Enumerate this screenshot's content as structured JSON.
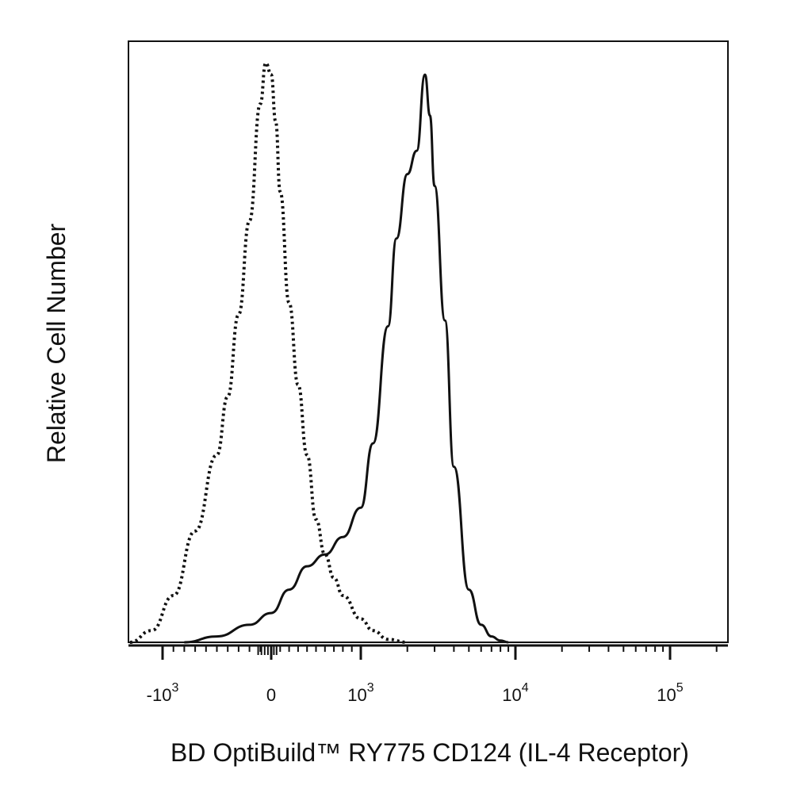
{
  "chart_data": {
    "type": "line",
    "title": "",
    "xlabel": "BD OptiBuild™ RY775 CD124 (IL-4 Receptor)",
    "ylabel": "Relative Cell Number",
    "x_scale": "biexponential",
    "xlim": [
      -1500,
      200000
    ],
    "ylim": [
      0,
      100
    ],
    "grid": false,
    "legend": "none",
    "x_tick_labels": [
      {
        "base": "-10",
        "exp": "3",
        "value": -1000
      },
      {
        "base": "0",
        "exp": "",
        "value": 0
      },
      {
        "base": "10",
        "exp": "3",
        "value": 1000
      },
      {
        "base": "10",
        "exp": "4",
        "value": 10000
      },
      {
        "base": "10",
        "exp": "5",
        "value": 100000
      }
    ],
    "series": [
      {
        "style": "dotted",
        "color": "#111111",
        "x": [
          -1300,
          -1100,
          -900,
          -700,
          -500,
          -400,
          -300,
          -200,
          -100,
          -50,
          0,
          50,
          100,
          200,
          300,
          400,
          500,
          600,
          700,
          800,
          1000,
          1200,
          1500,
          2000
        ],
        "y": [
          0,
          2,
          8,
          19,
          32,
          42,
          56,
          72,
          92,
          99,
          97,
          89,
          77,
          58,
          44,
          32,
          21,
          15,
          11,
          8,
          4,
          2,
          0.5,
          0
        ]
      },
      {
        "style": "solid",
        "color": "#111111",
        "x": [
          -800,
          -500,
          -200,
          0,
          200,
          400,
          600,
          800,
          1000,
          1200,
          1500,
          1700,
          2000,
          2300,
          2600,
          2800,
          3000,
          3500,
          4000,
          5000,
          6000,
          7000,
          8000,
          9000
        ],
        "y": [
          0,
          1,
          3,
          5,
          9,
          13,
          15,
          18,
          23,
          34,
          54,
          69,
          80,
          84,
          97,
          90,
          78,
          55,
          30,
          9,
          3,
          1,
          0.3,
          0
        ]
      }
    ]
  }
}
